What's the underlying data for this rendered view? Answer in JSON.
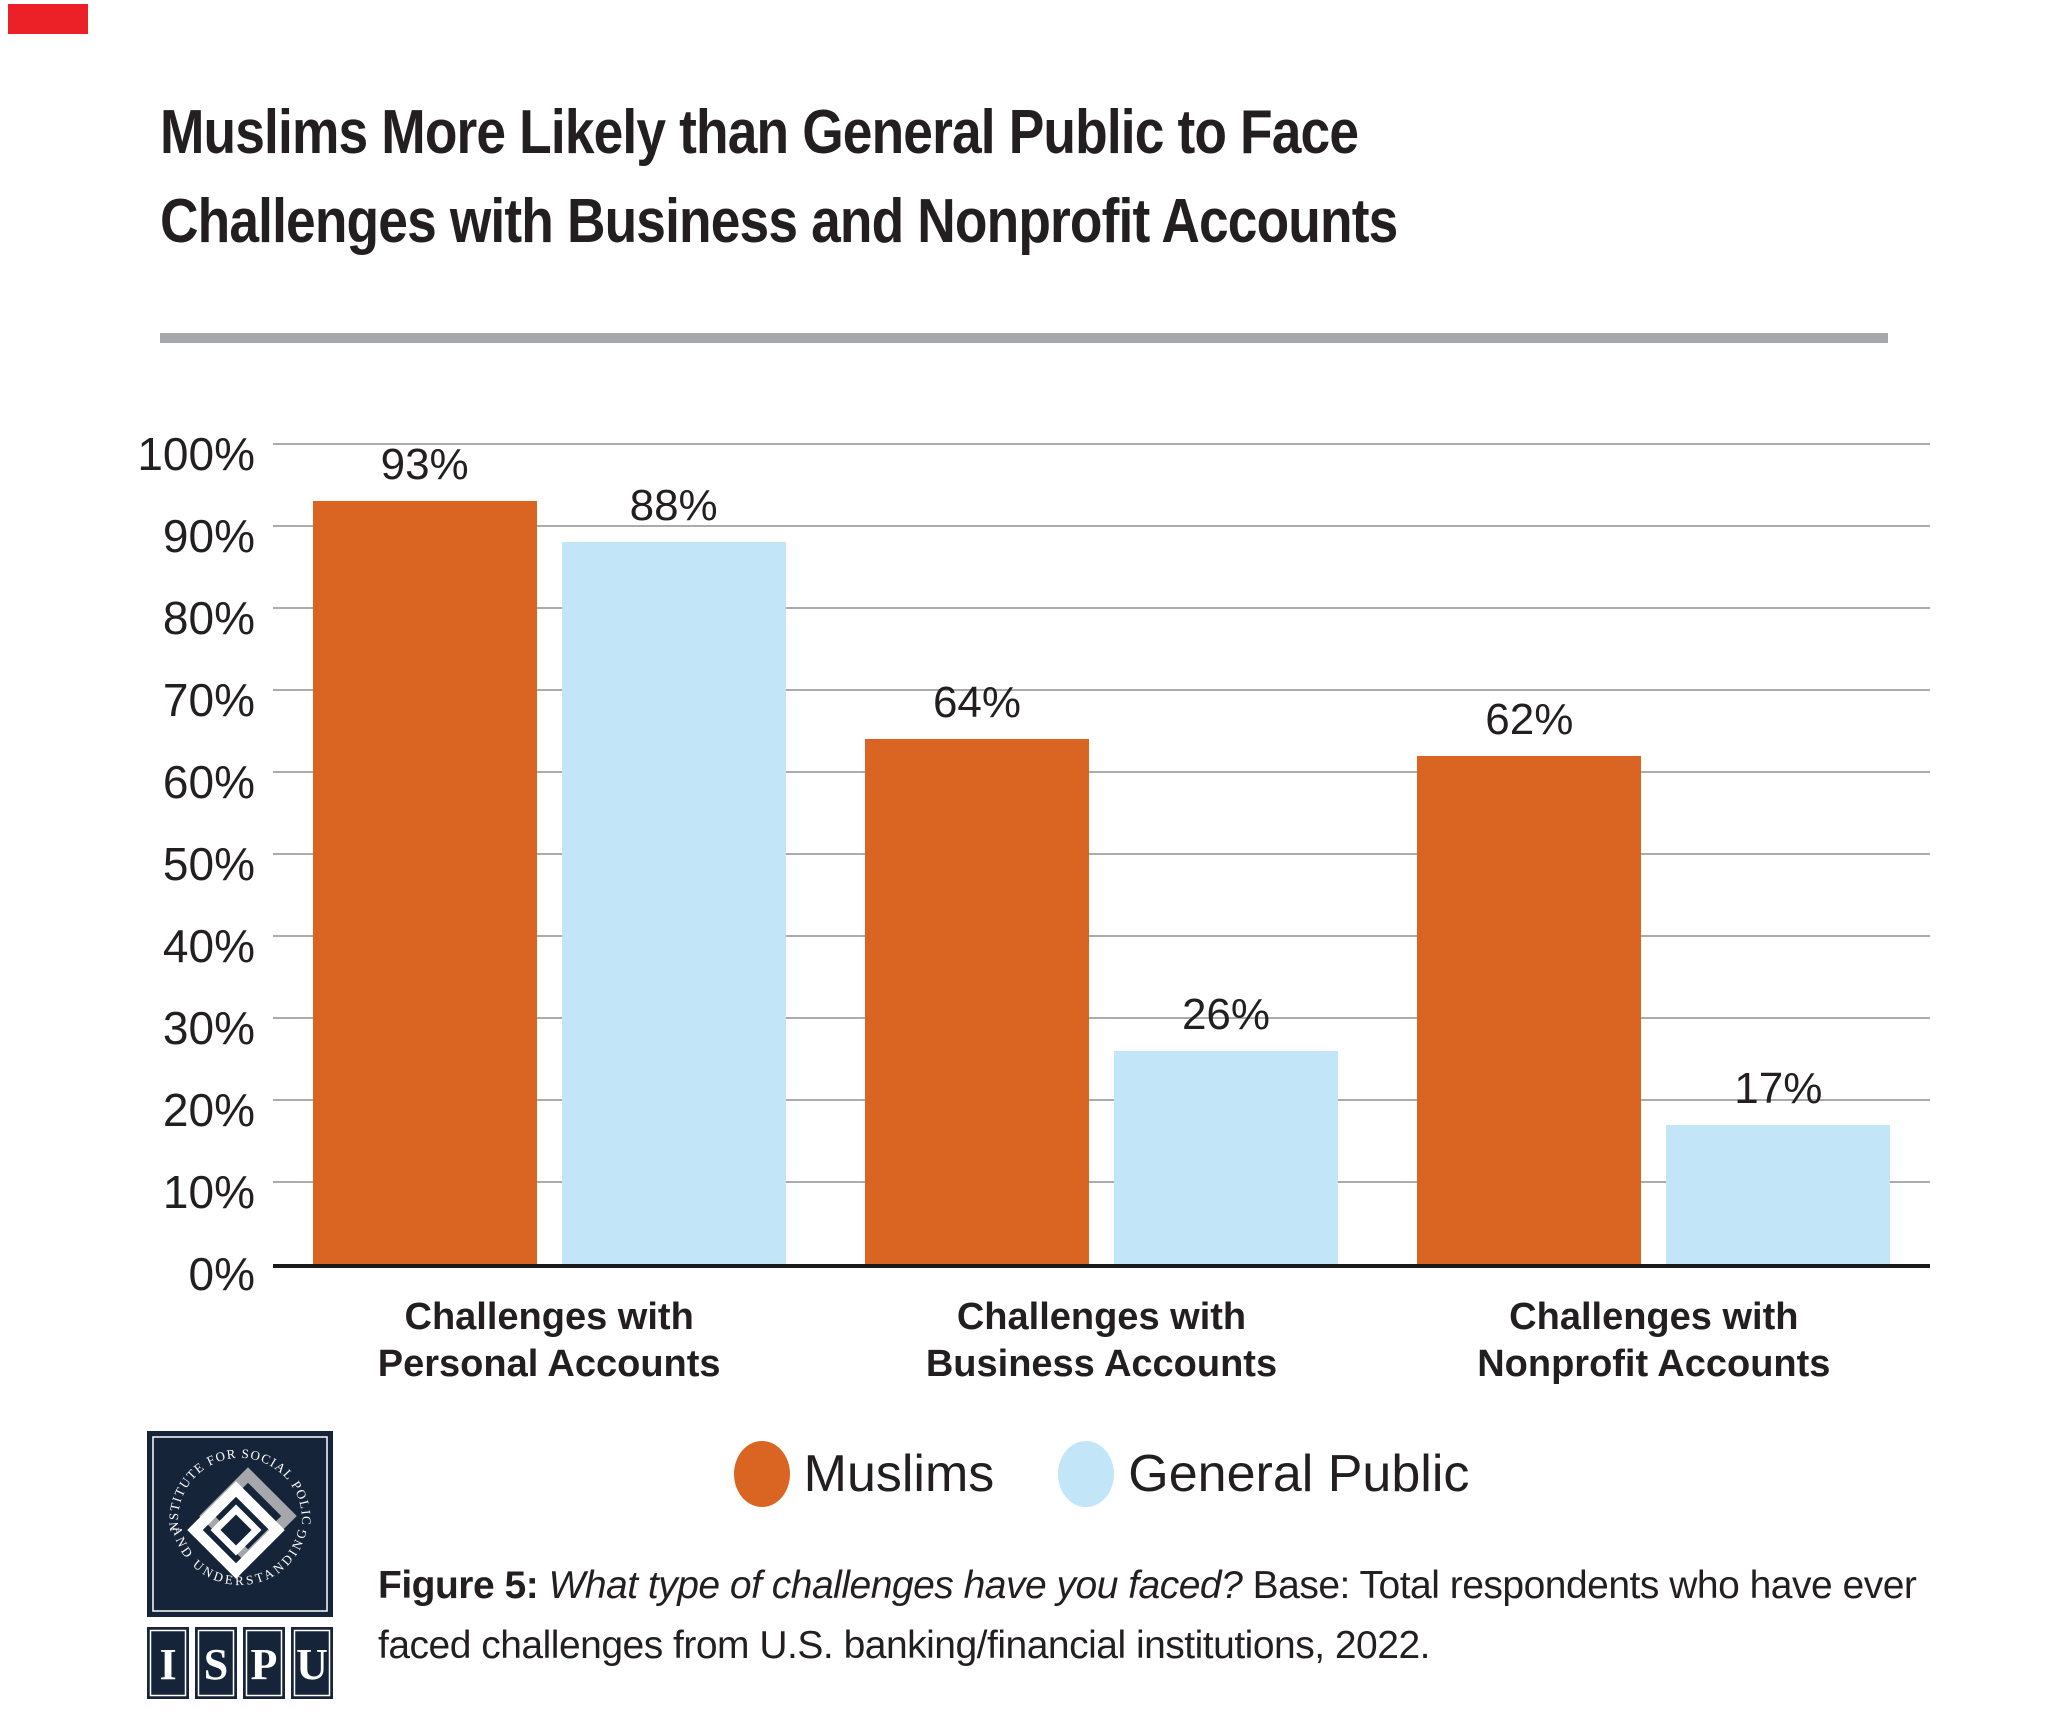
{
  "accent": {
    "corner_color": "#EC2127"
  },
  "title": {
    "line1": "Muslims More Likely than General Public to Face",
    "line2": "Challenges with Business and Nonprofit Accounts",
    "divider_color": "#A6A8AB"
  },
  "chart_data": {
    "type": "bar",
    "title": "Muslims More Likely than General Public to Face Challenges with Business and Nonprofit Accounts",
    "categories": [
      "Challenges with Personal Accounts",
      "Challenges with Business Accounts",
      "Challenges with Nonprofit Accounts"
    ],
    "category_label_lines": [
      [
        "Challenges with",
        "Personal Accounts"
      ],
      [
        "Challenges with",
        "Business Accounts"
      ],
      [
        "Challenges with",
        "Nonprofit Accounts"
      ]
    ],
    "series": [
      {
        "name": "Muslims",
        "color": "#DA6522",
        "values": [
          93,
          64,
          62
        ]
      },
      {
        "name": "General Public",
        "color": "#C2E6F8",
        "values": [
          88,
          26,
          17
        ]
      }
    ],
    "value_labels": [
      [
        "93%",
        "64%",
        "62%"
      ],
      [
        "88%",
        "26%",
        "17%"
      ]
    ],
    "xlabel": "",
    "ylabel": "",
    "ylim": [
      0,
      100
    ],
    "y_ticks": [
      "100%",
      "90%",
      "80%",
      "70%",
      "60%",
      "50%",
      "40%",
      "30%",
      "20%",
      "10%",
      "0%"
    ],
    "grid": true,
    "gridline_color": "#A9ABAD",
    "axis_line_color": "#1A1A1A",
    "legend_position": "bottom"
  },
  "legend": {
    "items": [
      {
        "label": "Muslims",
        "color": "#DA6522"
      },
      {
        "label": "General Public",
        "color": "#C2E6F8"
      }
    ]
  },
  "caption": {
    "figure_label": "Figure 5:",
    "question": " What type of challenges have you faced?",
    "rest": " Base: Total respondents who have ever faced challenges from U.S. banking/financial institutions, 2022."
  },
  "logo": {
    "arc_top": "INSTITUTE FOR SOCIAL POLICY",
    "arc_bottom": "AND UNDERSTANDING",
    "letters": [
      "I",
      "S",
      "P",
      "U"
    ],
    "navy": "#16243A",
    "gray": "#A5A7AA"
  }
}
